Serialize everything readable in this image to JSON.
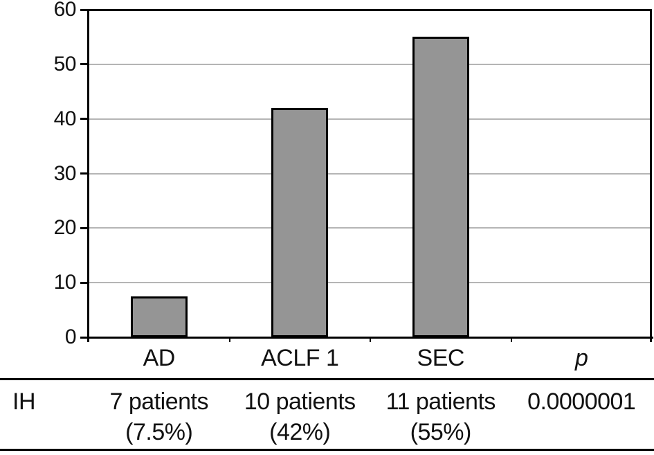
{
  "chart_data": {
    "type": "bar",
    "title": "",
    "xlabel": "",
    "ylabel": "",
    "categories": [
      "AD",
      "ACLF 1",
      "SEC"
    ],
    "values": [
      7.5,
      42,
      55
    ],
    "ylim": [
      0,
      60
    ],
    "yticks": [
      0,
      10,
      20,
      30,
      40,
      50,
      60
    ],
    "grid": "horizontal",
    "legend": "none",
    "bar_color": "#959595",
    "bar_border_color": "#000000",
    "gridline_color": "#b5b5b5",
    "axis_color": "#000000"
  },
  "table": {
    "columns": [
      "AD",
      "ACLF 1",
      "SEC",
      "p"
    ],
    "rows": [
      {
        "label": "IH",
        "cells": [
          {
            "line1": "7 patients",
            "line2": "(7.5%)"
          },
          {
            "line1": "10 patients",
            "line2": "(42%)"
          },
          {
            "line1": "11 patients",
            "line2": "(55%)"
          },
          {
            "line1": "0.0000001",
            "line2": ""
          }
        ]
      }
    ]
  }
}
